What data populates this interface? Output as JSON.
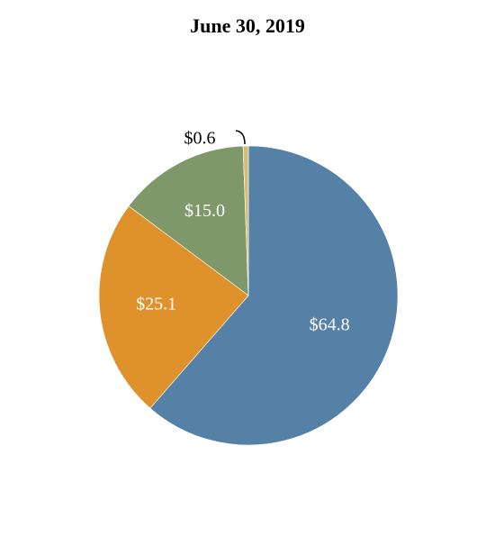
{
  "chart_data": {
    "type": "pie",
    "title": "June 30, 2019",
    "slices": [
      {
        "label": "$64.8",
        "value": 64.8,
        "color": "#5581a7"
      },
      {
        "label": "$25.1",
        "value": 25.1,
        "color": "#df922b"
      },
      {
        "label": "$15.0",
        "value": 15.0,
        "color": "#7e986a"
      },
      {
        "label": "$0.6",
        "value": 0.6,
        "color": "#d7bc78"
      }
    ],
    "label_colors": {
      "inside": "#ffffff",
      "outside": "#000000"
    }
  }
}
